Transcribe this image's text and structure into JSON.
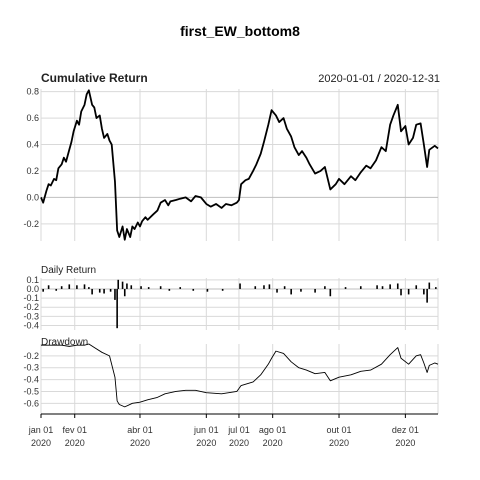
{
  "chart_data": {
    "title": "first_EW_bottom8",
    "date_range": "2020-01-01 / 2020-12-31",
    "x_ticks": [
      {
        "date": "2020-01-01",
        "label": "jan 01",
        "year": "2020"
      },
      {
        "date": "2020-02-01",
        "label": "fev 01",
        "year": "2020"
      },
      {
        "date": "2020-04-01",
        "label": "abr 01",
        "year": "2020"
      },
      {
        "date": "2020-06-01",
        "label": "jun 01",
        "year": "2020"
      },
      {
        "date": "2020-07-01",
        "label": "jul 01",
        "year": "2020"
      },
      {
        "date": "2020-08-01",
        "label": "ago 01",
        "year": "2020"
      },
      {
        "date": "2020-10-01",
        "label": "out 01",
        "year": "2020"
      },
      {
        "date": "2020-12-01",
        "label": "dez 01",
        "year": "2020"
      }
    ],
    "panels": [
      {
        "name": "Cumulative Return",
        "type": "line",
        "ylim": [
          -0.33,
          0.82
        ],
        "yticks": [
          "0.8",
          "0.6",
          "0.4",
          "0.2",
          "0.0",
          "-0.2"
        ],
        "ytick_values": [
          0.8,
          0.6,
          0.4,
          0.2,
          0.0,
          -0.2
        ],
        "series": [
          [
            "2020-01-01",
            0.0
          ],
          [
            "2020-01-03",
            -0.04
          ],
          [
            "2020-01-06",
            0.05
          ],
          [
            "2020-01-08",
            0.1
          ],
          [
            "2020-01-10",
            0.09
          ],
          [
            "2020-01-13",
            0.14
          ],
          [
            "2020-01-15",
            0.13
          ],
          [
            "2020-01-17",
            0.22
          ],
          [
            "2020-01-20",
            0.25
          ],
          [
            "2020-01-22",
            0.3
          ],
          [
            "2020-01-24",
            0.27
          ],
          [
            "2020-01-27",
            0.36
          ],
          [
            "2020-01-29",
            0.42
          ],
          [
            "2020-01-31",
            0.5
          ],
          [
            "2020-02-03",
            0.58
          ],
          [
            "2020-02-05",
            0.55
          ],
          [
            "2020-02-07",
            0.65
          ],
          [
            "2020-02-10",
            0.7
          ],
          [
            "2020-02-12",
            0.78
          ],
          [
            "2020-02-14",
            0.81
          ],
          [
            "2020-02-17",
            0.7
          ],
          [
            "2020-02-19",
            0.68
          ],
          [
            "2020-02-21",
            0.6
          ],
          [
            "2020-02-24",
            0.62
          ],
          [
            "2020-02-26",
            0.52
          ],
          [
            "2020-02-28",
            0.45
          ],
          [
            "2020-03-02",
            0.48
          ],
          [
            "2020-03-04",
            0.43
          ],
          [
            "2020-03-06",
            0.4
          ],
          [
            "2020-03-09",
            0.12
          ],
          [
            "2020-03-11",
            -0.25
          ],
          [
            "2020-03-13",
            -0.3
          ],
          [
            "2020-03-16",
            -0.22
          ],
          [
            "2020-03-18",
            -0.32
          ],
          [
            "2020-03-20",
            -0.24
          ],
          [
            "2020-03-23",
            -0.3
          ],
          [
            "2020-03-25",
            -0.22
          ],
          [
            "2020-03-27",
            -0.24
          ],
          [
            "2020-03-30",
            -0.19
          ],
          [
            "2020-04-01",
            -0.22
          ],
          [
            "2020-04-03",
            -0.18
          ],
          [
            "2020-04-06",
            -0.15
          ],
          [
            "2020-04-08",
            -0.17
          ],
          [
            "2020-04-13",
            -0.13
          ],
          [
            "2020-04-17",
            -0.1
          ],
          [
            "2020-04-20",
            -0.04
          ],
          [
            "2020-04-24",
            -0.02
          ],
          [
            "2020-04-27",
            -0.06
          ],
          [
            "2020-04-29",
            -0.03
          ],
          [
            "2020-05-04",
            -0.02
          ],
          [
            "2020-05-08",
            -0.01
          ],
          [
            "2020-05-13",
            0.0
          ],
          [
            "2020-05-18",
            -0.03
          ],
          [
            "2020-05-22",
            0.01
          ],
          [
            "2020-05-27",
            0.0
          ],
          [
            "2020-06-01",
            -0.05
          ],
          [
            "2020-06-05",
            -0.07
          ],
          [
            "2020-06-10",
            -0.05
          ],
          [
            "2020-06-15",
            -0.08
          ],
          [
            "2020-06-19",
            -0.05
          ],
          [
            "2020-06-24",
            -0.06
          ],
          [
            "2020-06-29",
            -0.04
          ],
          [
            "2020-07-01",
            -0.02
          ],
          [
            "2020-07-03",
            0.1
          ],
          [
            "2020-07-07",
            0.13
          ],
          [
            "2020-07-10",
            0.14
          ],
          [
            "2020-07-14",
            0.2
          ],
          [
            "2020-07-17",
            0.25
          ],
          [
            "2020-07-21",
            0.33
          ],
          [
            "2020-07-24",
            0.42
          ],
          [
            "2020-07-28",
            0.55
          ],
          [
            "2020-07-31",
            0.66
          ],
          [
            "2020-08-04",
            0.62
          ],
          [
            "2020-08-07",
            0.57
          ],
          [
            "2020-08-11",
            0.6
          ],
          [
            "2020-08-14",
            0.52
          ],
          [
            "2020-08-18",
            0.46
          ],
          [
            "2020-08-21",
            0.38
          ],
          [
            "2020-08-25",
            0.32
          ],
          [
            "2020-08-28",
            0.35
          ],
          [
            "2020-09-01",
            0.3
          ],
          [
            "2020-09-04",
            0.25
          ],
          [
            "2020-09-09",
            0.18
          ],
          [
            "2020-09-14",
            0.2
          ],
          [
            "2020-09-18",
            0.23
          ],
          [
            "2020-09-23",
            0.06
          ],
          [
            "2020-09-28",
            0.1
          ],
          [
            "2020-10-01",
            0.14
          ],
          [
            "2020-10-06",
            0.1
          ],
          [
            "2020-10-12",
            0.16
          ],
          [
            "2020-10-16",
            0.13
          ],
          [
            "2020-10-21",
            0.19
          ],
          [
            "2020-10-26",
            0.24
          ],
          [
            "2020-10-30",
            0.22
          ],
          [
            "2020-11-04",
            0.28
          ],
          [
            "2020-11-09",
            0.38
          ],
          [
            "2020-11-13",
            0.35
          ],
          [
            "2020-11-17",
            0.55
          ],
          [
            "2020-11-20",
            0.62
          ],
          [
            "2020-11-24",
            0.7
          ],
          [
            "2020-11-27",
            0.5
          ],
          [
            "2020-12-01",
            0.54
          ],
          [
            "2020-12-04",
            0.4
          ],
          [
            "2020-12-08",
            0.45
          ],
          [
            "2020-12-11",
            0.55
          ],
          [
            "2020-12-15",
            0.56
          ],
          [
            "2020-12-18",
            0.4
          ],
          [
            "2020-12-21",
            0.23
          ],
          [
            "2020-12-23",
            0.36
          ],
          [
            "2020-12-28",
            0.39
          ],
          [
            "2020-12-31",
            0.37
          ]
        ]
      },
      {
        "name": "Daily Return",
        "type": "bar",
        "ylim": [
          -0.45,
          0.12
        ],
        "yticks": [
          "0.1",
          "0.0",
          "-0.1",
          "-0.2",
          "-0.3",
          "-0.4"
        ],
        "ytick_values": [
          0.1,
          0.0,
          -0.1,
          -0.2,
          -0.3,
          -0.4
        ],
        "series": [
          [
            "2020-01-03",
            -0.03
          ],
          [
            "2020-01-08",
            0.04
          ],
          [
            "2020-01-15",
            -0.02
          ],
          [
            "2020-01-20",
            0.03
          ],
          [
            "2020-01-27",
            0.05
          ],
          [
            "2020-02-03",
            0.04
          ],
          [
            "2020-02-10",
            0.05
          ],
          [
            "2020-02-14",
            0.02
          ],
          [
            "2020-02-17",
            -0.06
          ],
          [
            "2020-02-24",
            -0.04
          ],
          [
            "2020-02-28",
            -0.05
          ],
          [
            "2020-03-05",
            -0.03
          ],
          [
            "2020-03-09",
            -0.12
          ],
          [
            "2020-03-11",
            -0.43
          ],
          [
            "2020-03-12",
            0.1
          ],
          [
            "2020-03-16",
            0.08
          ],
          [
            "2020-03-18",
            -0.08
          ],
          [
            "2020-03-20",
            0.06
          ],
          [
            "2020-03-24",
            0.04
          ],
          [
            "2020-04-02",
            0.03
          ],
          [
            "2020-04-09",
            0.02
          ],
          [
            "2020-04-20",
            0.03
          ],
          [
            "2020-04-28",
            -0.02
          ],
          [
            "2020-05-08",
            0.02
          ],
          [
            "2020-05-20",
            -0.02
          ],
          [
            "2020-06-02",
            -0.03
          ],
          [
            "2020-06-16",
            -0.02
          ],
          [
            "2020-07-02",
            0.06
          ],
          [
            "2020-07-16",
            0.03
          ],
          [
            "2020-07-24",
            0.04
          ],
          [
            "2020-07-29",
            0.05
          ],
          [
            "2020-08-05",
            -0.04
          ],
          [
            "2020-08-12",
            0.03
          ],
          [
            "2020-08-18",
            -0.06
          ],
          [
            "2020-08-27",
            -0.03
          ],
          [
            "2020-09-09",
            -0.04
          ],
          [
            "2020-09-18",
            0.03
          ],
          [
            "2020-09-23",
            -0.08
          ],
          [
            "2020-10-07",
            0.02
          ],
          [
            "2020-10-21",
            0.03
          ],
          [
            "2020-11-05",
            0.04
          ],
          [
            "2020-11-10",
            0.03
          ],
          [
            "2020-11-17",
            0.05
          ],
          [
            "2020-11-24",
            0.06
          ],
          [
            "2020-11-27",
            -0.07
          ],
          [
            "2020-12-04",
            -0.06
          ],
          [
            "2020-12-11",
            0.04
          ],
          [
            "2020-12-18",
            -0.06
          ],
          [
            "2020-12-21",
            -0.15
          ],
          [
            "2020-12-23",
            0.07
          ],
          [
            "2020-12-29",
            0.02
          ]
        ]
      },
      {
        "name": "Drawdown",
        "type": "line",
        "ylim": [
          -0.69,
          -0.1
        ],
        "yticks": [
          "-0.2",
          "-0.3",
          "-0.4",
          "-0.5",
          "-0.6"
        ],
        "ytick_values": [
          -0.2,
          -0.3,
          -0.4,
          -0.5,
          -0.6
        ],
        "series": [
          [
            "2020-01-01",
            -0.11
          ],
          [
            "2020-01-10",
            -0.11
          ],
          [
            "2020-01-20",
            -0.11
          ],
          [
            "2020-01-27",
            -0.12
          ],
          [
            "2020-02-03",
            -0.11
          ],
          [
            "2020-02-10",
            -0.11
          ],
          [
            "2020-02-14",
            -0.1
          ],
          [
            "2020-02-19",
            -0.13
          ],
          [
            "2020-02-26",
            -0.17
          ],
          [
            "2020-03-04",
            -0.2
          ],
          [
            "2020-03-09",
            -0.38
          ],
          [
            "2020-03-11",
            -0.58
          ],
          [
            "2020-03-13",
            -0.61
          ],
          [
            "2020-03-18",
            -0.63
          ],
          [
            "2020-03-25",
            -0.6
          ],
          [
            "2020-04-01",
            -0.59
          ],
          [
            "2020-04-08",
            -0.57
          ],
          [
            "2020-04-17",
            -0.55
          ],
          [
            "2020-04-24",
            -0.52
          ],
          [
            "2020-05-04",
            -0.5
          ],
          [
            "2020-05-13",
            -0.49
          ],
          [
            "2020-05-22",
            -0.49
          ],
          [
            "2020-06-01",
            -0.51
          ],
          [
            "2020-06-15",
            -0.52
          ],
          [
            "2020-06-29",
            -0.5
          ],
          [
            "2020-07-03",
            -0.45
          ],
          [
            "2020-07-14",
            -0.42
          ],
          [
            "2020-07-21",
            -0.36
          ],
          [
            "2020-07-28",
            -0.27
          ],
          [
            "2020-07-31",
            -0.22
          ],
          [
            "2020-08-04",
            -0.16
          ],
          [
            "2020-08-11",
            -0.18
          ],
          [
            "2020-08-18",
            -0.25
          ],
          [
            "2020-08-25",
            -0.3
          ],
          [
            "2020-09-01",
            -0.32
          ],
          [
            "2020-09-09",
            -0.35
          ],
          [
            "2020-09-18",
            -0.34
          ],
          [
            "2020-09-23",
            -0.41
          ],
          [
            "2020-10-01",
            -0.38
          ],
          [
            "2020-10-12",
            -0.36
          ],
          [
            "2020-10-21",
            -0.33
          ],
          [
            "2020-10-30",
            -0.32
          ],
          [
            "2020-11-09",
            -0.27
          ],
          [
            "2020-11-17",
            -0.19
          ],
          [
            "2020-11-24",
            -0.13
          ],
          [
            "2020-11-27",
            -0.22
          ],
          [
            "2020-12-04",
            -0.27
          ],
          [
            "2020-12-11",
            -0.2
          ],
          [
            "2020-12-15",
            -0.19
          ],
          [
            "2020-12-18",
            -0.26
          ],
          [
            "2020-12-21",
            -0.34
          ],
          [
            "2020-12-23",
            -0.28
          ],
          [
            "2020-12-28",
            -0.26
          ],
          [
            "2020-12-31",
            -0.27
          ]
        ]
      }
    ]
  }
}
